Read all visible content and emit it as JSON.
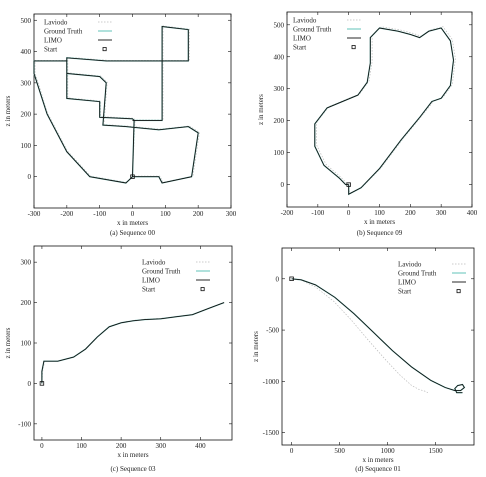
{
  "legend_labels": {
    "laviodo": "Laviodo",
    "ground_truth": "Ground Truth",
    "limo": "LIMO",
    "start": "Start"
  },
  "colors": {
    "ground_truth": "#8fd4cc",
    "limo": "#111111",
    "laviodo": "#bbbbbb"
  },
  "chart_data": [
    {
      "type": "line",
      "caption": "(a) Sequence 00",
      "xlabel": "x in meters",
      "ylabel": "z in meters",
      "xlim": [
        -300,
        300
      ],
      "ylim": [
        -100,
        520
      ],
      "xticks": [
        -300,
        -200,
        -100,
        0,
        100,
        200,
        300
      ],
      "yticks": [
        0,
        100,
        200,
        300,
        400,
        500
      ],
      "start": [
        0,
        0
      ],
      "series": [
        {
          "name": "Ground Truth",
          "key": "ground_truth",
          "x": [
            0,
            5,
            0,
            -100,
            -100,
            -200,
            -200,
            -300,
            -300,
            -260,
            -200,
            -130,
            -20,
            0,
            80,
            90,
            180,
            200,
            170,
            80,
            -20,
            -90,
            -80,
            -100,
            -200,
            -200,
            -80,
            170,
            170,
            90,
            90,
            0
          ],
          "y": [
            0,
            180,
            185,
            190,
            240,
            250,
            370,
            370,
            330,
            200,
            80,
            0,
            -20,
            0,
            0,
            -20,
            0,
            140,
            160,
            150,
            160,
            165,
            300,
            320,
            330,
            380,
            370,
            370,
            470,
            480,
            180,
            180
          ]
        },
        {
          "name": "LIMO",
          "key": "limo",
          "x": [
            0,
            5,
            0,
            -100,
            -100,
            -200,
            -200,
            -300,
            -300,
            -260,
            -200,
            -130,
            -20,
            0,
            80,
            90,
            180,
            200,
            170,
            80,
            -20,
            -90,
            -80,
            -100,
            -200,
            -200,
            -80,
            170,
            170,
            90,
            90,
            0
          ],
          "y": [
            0,
            180,
            185,
            190,
            240,
            250,
            370,
            370,
            330,
            200,
            80,
            0,
            -20,
            0,
            0,
            -20,
            0,
            140,
            160,
            150,
            160,
            165,
            300,
            320,
            330,
            380,
            370,
            370,
            470,
            480,
            180,
            180
          ]
        },
        {
          "name": "Laviodo",
          "key": "laviodo",
          "x": [
            0,
            8,
            3,
            -97,
            -97,
            -197,
            -197,
            -297,
            -297,
            -258,
            -198,
            -128,
            -18,
            3,
            83,
            93,
            184,
            204,
            173,
            83,
            -17,
            -87,
            -77,
            -97,
            -197,
            -197,
            -77,
            173,
            173,
            93,
            93,
            3
          ],
          "y": [
            0,
            182,
            187,
            192,
            242,
            252,
            372,
            372,
            332,
            202,
            82,
            2,
            -18,
            2,
            2,
            -18,
            2,
            142,
            162,
            152,
            162,
            167,
            302,
            322,
            332,
            382,
            372,
            372,
            472,
            482,
            182,
            182
          ]
        }
      ]
    },
    {
      "type": "line",
      "caption": "(b) Sequence 09",
      "xlabel": "x in meters",
      "ylabel": "z in meters",
      "xlim": [
        -200,
        400
      ],
      "ylim": [
        -70,
        540
      ],
      "xticks": [
        -200,
        -100,
        0,
        100,
        200,
        300,
        400
      ],
      "yticks": [
        0,
        100,
        200,
        300,
        400,
        500
      ],
      "start": [
        0,
        0
      ],
      "series": [
        {
          "name": "Ground Truth",
          "key": "ground_truth",
          "x": [
            0,
            0,
            40,
            100,
            170,
            230,
            270,
            300,
            330,
            340,
            330,
            300,
            260,
            230,
            200,
            160,
            100,
            70,
            70,
            60,
            30,
            -70,
            -110,
            -110,
            -80,
            -30,
            -10,
            0
          ],
          "y": [
            0,
            -30,
            -10,
            50,
            140,
            210,
            260,
            270,
            310,
            390,
            450,
            490,
            480,
            460,
            470,
            480,
            490,
            460,
            380,
            320,
            280,
            240,
            190,
            120,
            60,
            20,
            0,
            0
          ]
        },
        {
          "name": "LIMO",
          "key": "limo",
          "x": [
            0,
            0,
            40,
            100,
            170,
            230,
            270,
            300,
            330,
            340,
            330,
            300,
            260,
            230,
            200,
            160,
            100,
            70,
            70,
            60,
            30,
            -70,
            -110,
            -110,
            -80,
            -30,
            -10,
            0
          ],
          "y": [
            0,
            -30,
            -10,
            50,
            140,
            210,
            260,
            270,
            310,
            390,
            450,
            490,
            480,
            460,
            470,
            480,
            490,
            460,
            380,
            320,
            280,
            240,
            190,
            120,
            60,
            20,
            0,
            0
          ]
        },
        {
          "name": "Laviodo",
          "key": "laviodo",
          "x": [
            0,
            3,
            44,
            105,
            176,
            236,
            277,
            306,
            336,
            346,
            336,
            306,
            266,
            236,
            206,
            166,
            106,
            76,
            76,
            66,
            36,
            -64,
            -104,
            -104,
            -74,
            -24,
            -4,
            4
          ],
          "y": [
            0,
            -28,
            -8,
            52,
            143,
            213,
            263,
            273,
            313,
            394,
            454,
            494,
            484,
            464,
            474,
            484,
            494,
            464,
            384,
            324,
            284,
            244,
            194,
            124,
            64,
            22,
            2,
            2
          ]
        }
      ]
    },
    {
      "type": "line",
      "caption": "(c) Sequence 03",
      "xlabel": "x in meters",
      "ylabel": "z in meters",
      "xlim": [
        -20,
        480
      ],
      "ylim": [
        -140,
        340
      ],
      "xticks": [
        0,
        100,
        200,
        300,
        400
      ],
      "yticks": [
        -100,
        0,
        100,
        200,
        300
      ],
      "start": [
        0,
        0
      ],
      "series": [
        {
          "name": "Ground Truth",
          "key": "ground_truth",
          "x": [
            0,
            0,
            5,
            40,
            80,
            110,
            140,
            170,
            200,
            230,
            260,
            300,
            340,
            380,
            420,
            460
          ],
          "y": [
            0,
            30,
            55,
            55,
            65,
            85,
            115,
            140,
            150,
            155,
            158,
            160,
            165,
            170,
            185,
            200
          ]
        },
        {
          "name": "LIMO",
          "key": "limo",
          "x": [
            0,
            0,
            5,
            40,
            80,
            110,
            140,
            170,
            200,
            230,
            260,
            300,
            340,
            380,
            420,
            460
          ],
          "y": [
            0,
            30,
            55,
            55,
            65,
            85,
            115,
            140,
            150,
            155,
            158,
            160,
            165,
            170,
            185,
            200
          ]
        },
        {
          "name": "Laviodo",
          "key": "laviodo",
          "x": [
            0,
            2,
            7,
            42,
            82,
            112,
            142,
            172,
            202,
            232,
            262,
            302,
            342,
            382,
            422,
            462
          ],
          "y": [
            0,
            31,
            56,
            56,
            66,
            86,
            116,
            141,
            151,
            156,
            159,
            161,
            166,
            171,
            186,
            201
          ]
        }
      ]
    },
    {
      "type": "line",
      "caption": "(d) Sequence 01",
      "xlabel": "x in meters",
      "ylabel": "z in meters",
      "xlim": [
        -100,
        1900
      ],
      "ylim": [
        -1620,
        300
      ],
      "xticks": [
        0,
        500,
        1000,
        1500
      ],
      "yticks": [
        -1500,
        -1000,
        -500,
        0
      ],
      "start": [
        0,
        0
      ],
      "series": [
        {
          "name": "Ground Truth",
          "key": "ground_truth",
          "x": [
            0,
            100,
            250,
            450,
            650,
            850,
            1050,
            1250,
            1450,
            1600,
            1700,
            1760,
            1800,
            1780,
            1730,
            1700,
            1720,
            1780
          ],
          "y": [
            0,
            -10,
            -60,
            -180,
            -340,
            -520,
            -700,
            -860,
            -990,
            -1060,
            -1090,
            -1090,
            -1060,
            -1030,
            -1040,
            -1070,
            -1110,
            -1110
          ]
        },
        {
          "name": "LIMO",
          "key": "limo",
          "x": [
            0,
            100,
            250,
            450,
            650,
            850,
            1050,
            1250,
            1450,
            1600,
            1700,
            1760,
            1800,
            1780,
            1730,
            1700,
            1720,
            1780
          ],
          "y": [
            0,
            -10,
            -60,
            -180,
            -340,
            -520,
            -700,
            -860,
            -990,
            -1060,
            -1090,
            -1090,
            -1060,
            -1030,
            -1040,
            -1070,
            -1110,
            -1110
          ]
        },
        {
          "name": "Laviodo",
          "key": "laviodo",
          "x": [
            0,
            100,
            250,
            440,
            620,
            800,
            970,
            1120,
            1250,
            1330,
            1370,
            1400,
            1420
          ],
          "y": [
            0,
            -15,
            -80,
            -220,
            -400,
            -600,
            -780,
            -930,
            -1040,
            -1080,
            -1090,
            -1100,
            -1110
          ]
        }
      ]
    }
  ]
}
